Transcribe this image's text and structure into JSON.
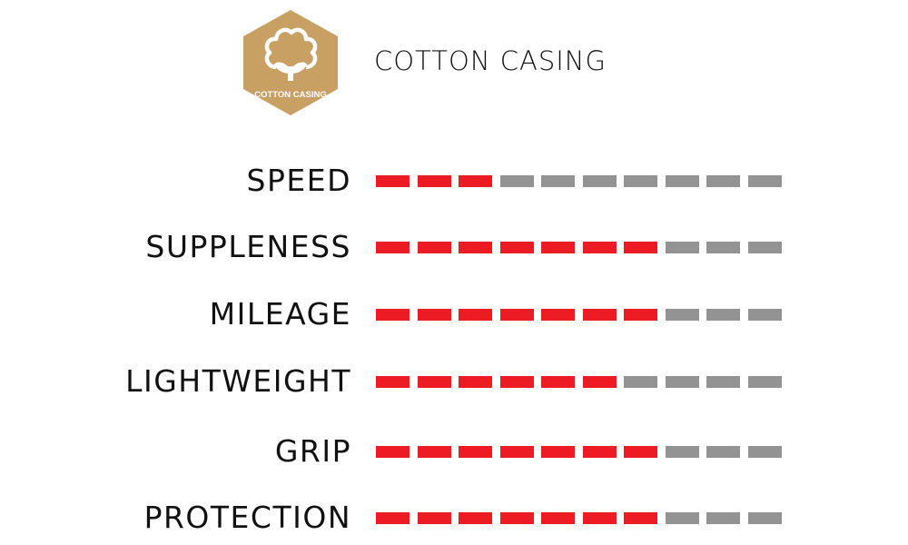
{
  "badge": {
    "text": "COTTON CASING",
    "color": "#c9a063",
    "icon": "cotton-plant-icon"
  },
  "title": "COTTON CASING",
  "scale_max": 10,
  "colors": {
    "filled": "#ed1c24",
    "empty": "#939393"
  },
  "ratings": [
    {
      "label": "SPEED",
      "value": 3
    },
    {
      "label": "SUPPLENESS",
      "value": 7
    },
    {
      "label": "MILEAGE",
      "value": 7
    },
    {
      "label": "LIGHTWEIGHT",
      "value": 6
    },
    {
      "label": "GRIP",
      "value": 7
    },
    {
      "label": "PROTECTION",
      "value": 7
    }
  ]
}
